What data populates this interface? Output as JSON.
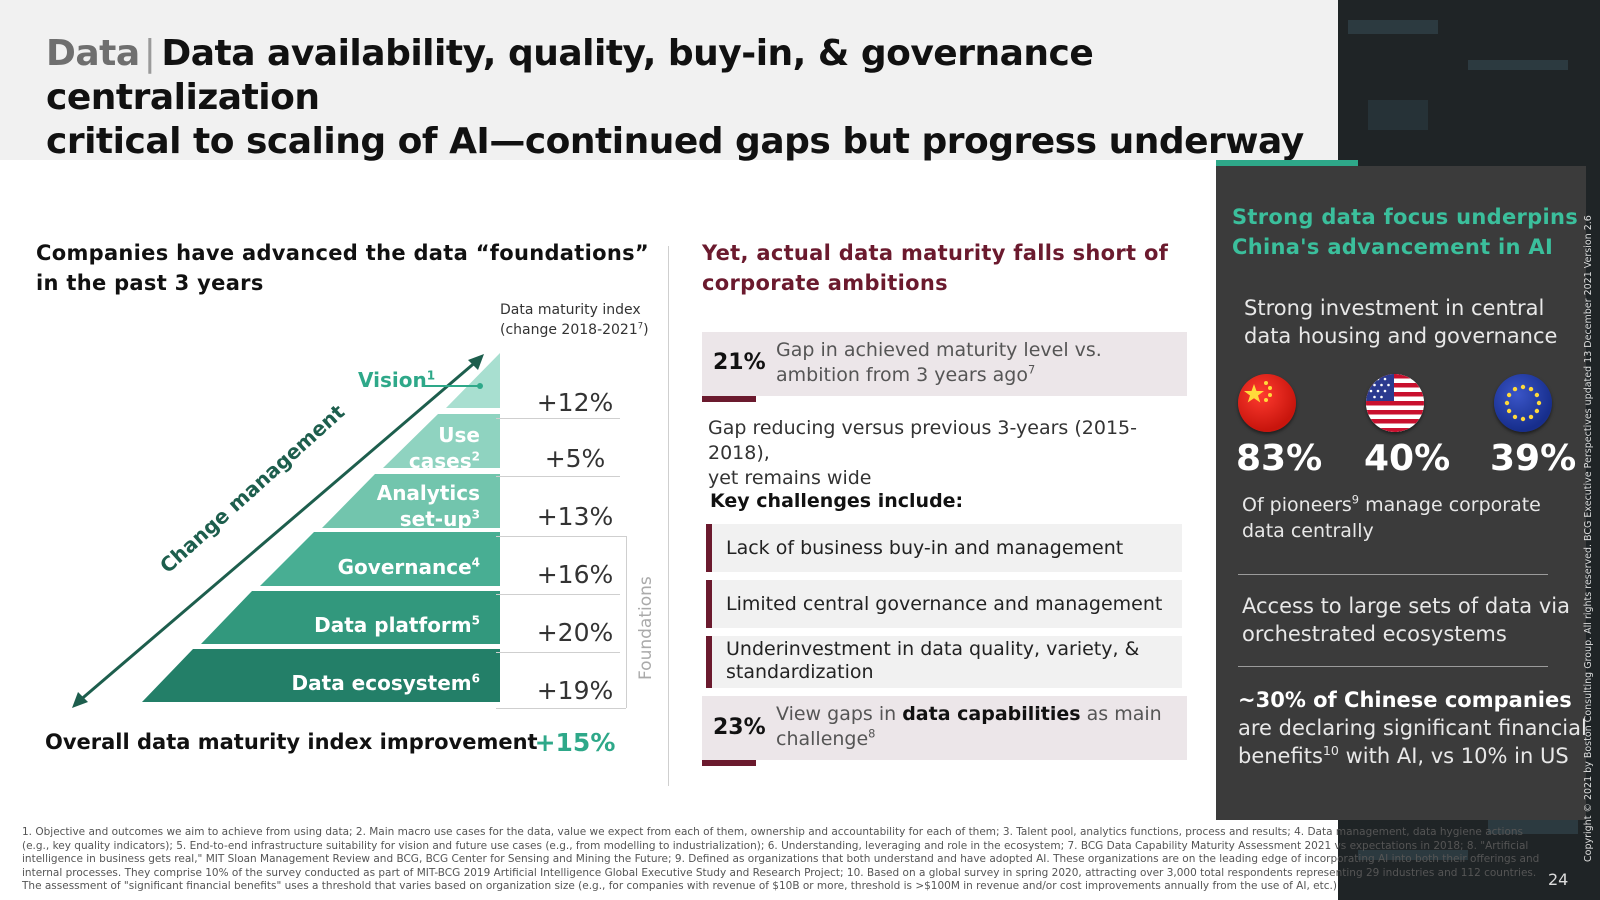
{
  "header": {
    "prefix": "Data",
    "separator": "|",
    "title_line1": "Data availability, quality, buy-in, & governance centralization",
    "title_line2": "critical to scaling of AI—continued gaps but progress underway"
  },
  "left": {
    "heading_line1": "Companies have advanced the data “foundations”",
    "heading_line2": "in the past 3 years",
    "index_label_line1": "Data maturity index",
    "index_label_line2_pre": "(change 2018-2021",
    "index_label_sup": "7",
    "index_label_line2_post": ")",
    "arrow_label": "Change management",
    "foundations_label": "Foundations",
    "vision": {
      "label": "Vision",
      "sup": "1",
      "value": "+12%"
    },
    "levels": [
      {
        "label_line1": "Use",
        "label_line2": "cases",
        "sup": "2",
        "value": "+5%"
      },
      {
        "label_line1": "Analytics",
        "label_line2": "set-up",
        "sup": "3",
        "value": "+13%"
      },
      {
        "label_line1": "",
        "label_line2": "Governance",
        "sup": "4",
        "value": "+16%"
      },
      {
        "label_line1": "",
        "label_line2": "Data platform",
        "sup": "5",
        "value": "+20%"
      },
      {
        "label_line1": "",
        "label_line2": "Data ecosystem",
        "sup": "6",
        "value": "+19%"
      }
    ],
    "overall_label": "Overall data maturity index improvement",
    "overall_value": "+15%"
  },
  "middle": {
    "heading_line1": "Yet, actual data maturity falls short of",
    "heading_line2": "corporate ambitions",
    "gap1_value": "21%",
    "gap1_text_line1": "Gap in achieved maturity level vs.",
    "gap1_text_line2_pre": "ambition from 3 years ago",
    "gap1_sup": "7",
    "gap_note_line1": "Gap reducing versus previous 3-years (2015-2018),",
    "gap_note_line2": "yet remains wide",
    "challenges_heading": "Key challenges include:",
    "challenges": [
      "Lack of business buy-in and management",
      "Limited central governance and management",
      "Underinvestment in data quality, variety, &"
    ],
    "challenge3_line2": "standardization",
    "gap2_value": "23%",
    "gap2_pre": "View gaps in ",
    "gap2_bold": "data capabilities",
    "gap2_post": " as main",
    "gap2_line2": "challenge",
    "gap2_sup": "8"
  },
  "panel": {
    "heading_line1": "Strong data focus underpins",
    "heading_line2": "China's advancement in AI",
    "sub_line1": "Strong investment in central",
    "sub_line2": "data housing and governance",
    "stats": [
      {
        "flag": "china-flag-icon",
        "value": "83%"
      },
      {
        "flag": "usa-flag-icon",
        "value": "40%"
      },
      {
        "flag": "eu-flag-icon",
        "value": "39%"
      }
    ],
    "stats_caption_pre": "Of pioneers",
    "stats_caption_sup": "9",
    "stats_caption_post": " manage corporate",
    "stats_caption_line2": "data centrally",
    "access_line1": "Access to large sets of data via",
    "access_line2": "orchestrated ecosystems",
    "china_bold": "~30% of Chinese companies",
    "china_line2": "are declaring significant financial",
    "china_line3_pre": "benefits",
    "china_sup": "10",
    "china_line3_post": " with AI, vs 10% in US"
  },
  "footnote": "1. Objective and outcomes we aim to achieve from using data; 2. Main macro use cases for the data, value we expect from each of them, ownership and accountability for each of them; 3. Talent pool, analytics functions, process and results; 4. Data management, data hygiene actions (e.g., key quality indicators); 5. End-to-end infrastructure suitability for vision and future use cases (e.g., from modelling to industrialization); 6. Understanding, leveraging and role in the ecosystem; 7. BCG Data Capability Maturity Assessment 2021 vs expectations in 2018; 8. \"Artificial intelligence in business gets real,\" MIT Sloan Management Review and BCG, BCG Center for Sensing and Mining the Future; 9. Defined as organizations that both understand and have adopted AI. These organizations are on the leading edge of incorporating AI into both their offerings and internal processes. They comprise 10% of the survey conducted as part of MIT-BCG 2019 Artificial Intelligence Global Executive Study and Research Project; 10. Based on a global survey in spring 2020, attracting over 3,000 total respondents representing 29 industries and 112 countries. The assessment of \"significant financial benefits\" uses a threshold that varies based on organization size (e.g., for companies with revenue of $10B or more, threshold is >$100M in revenue and/or cost improvements annually from the use of AI, etc.)",
  "page_number": "24",
  "copyright": "Copyright © 2021 by Boston Consulting Group. All rights reserved. BCG Executive Perspectives updated 13 December 2021 Version 2.6",
  "colors": {
    "accent_green": "#3bbf9c",
    "maroon": "#6b1a2e",
    "panel_bg": "#3b3b3b"
  }
}
